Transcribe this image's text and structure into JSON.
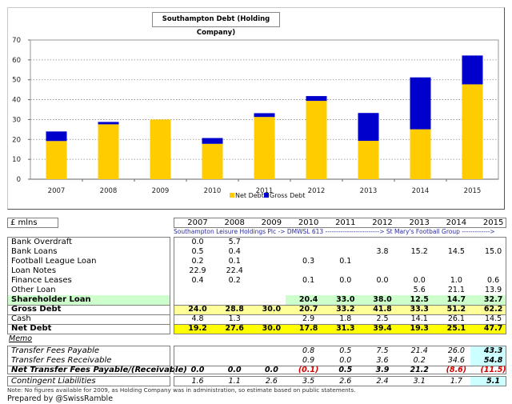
{
  "chart_data": {
    "type": "bar",
    "stacked": true,
    "title": "Southampton Debt (Holding Company)",
    "xlabel": "",
    "ylabel": "",
    "ylim": [
      0,
      70
    ],
    "yticks": [
      0,
      10,
      20,
      30,
      40,
      50,
      60,
      70
    ],
    "grid": true,
    "legend_position": "bottom",
    "categories": [
      "2007",
      "2008",
      "2009",
      "2010",
      "2011",
      "2012",
      "2013",
      "2014",
      "2015"
    ],
    "series": [
      {
        "name": "Net Debt",
        "color": "#FFCC00",
        "values": [
          19.2,
          27.6,
          30.0,
          17.8,
          31.3,
          39.4,
          19.3,
          25.1,
          47.7
        ]
      },
      {
        "name": "Gross Debt",
        "color": "#0000CC",
        "values": [
          4.8,
          1.2,
          0.0,
          2.9,
          1.9,
          2.4,
          14.0,
          26.1,
          14.5
        ],
        "note": "stacked difference to gross debt total",
        "totals": [
          24.0,
          28.8,
          30.0,
          20.7,
          33.2,
          41.8,
          33.3,
          51.2,
          62.2
        ]
      }
    ]
  },
  "table": {
    "unit_label": "£ mlns",
    "years": [
      "2007",
      "2008",
      "2009",
      "2010",
      "2011",
      "2012",
      "2013",
      "2014",
      "2015"
    ],
    "entities_line": "Southampton Leisure Holdings Plc -> DMWSL 613 -------------------------> St Mary's Football Group ------------->",
    "rows": [
      {
        "label": "Bank Overdraft",
        "values": [
          "0.0",
          "5.7",
          "",
          "",
          "",
          "",
          "",
          "",
          ""
        ]
      },
      {
        "label": "Bank Loans",
        "values": [
          "0.5",
          "0.4",
          "",
          "",
          "",
          "3.8",
          "15.2",
          "14.5",
          "15.0"
        ]
      },
      {
        "label": "Football League Loan",
        "values": [
          "0.2",
          "0.1",
          "",
          "0.3",
          "0.1",
          "",
          "",
          "",
          ""
        ]
      },
      {
        "label": "Loan Notes",
        "values": [
          "22.9",
          "22.4",
          "",
          "",
          "",
          "",
          "",
          "",
          ""
        ]
      },
      {
        "label": "Finance Leases",
        "values": [
          "0.4",
          "0.2",
          "",
          "0.1",
          "0.0",
          "0.0",
          "0.0",
          "1.0",
          "0.6"
        ]
      },
      {
        "label": "Other Loan",
        "values": [
          "",
          "",
          "",
          "",
          "",
          "",
          "5.6",
          "21.1",
          "13.9"
        ]
      },
      {
        "label": "Shareholder Loan",
        "values": [
          "",
          "",
          "",
          "20.4",
          "33.0",
          "38.0",
          "12.5",
          "14.7",
          "32.7"
        ]
      },
      {
        "label": "Gross Debt",
        "values": [
          "24.0",
          "28.8",
          "30.0",
          "20.7",
          "33.2",
          "41.8",
          "33.3",
          "51.2",
          "62.2"
        ]
      },
      {
        "label": "Cash",
        "values": [
          "4.8",
          "1.3",
          "",
          "2.9",
          "1.8",
          "2.5",
          "14.1",
          "26.1",
          "14.5"
        ]
      },
      {
        "label": "Net Debt",
        "values": [
          "19.2",
          "27.6",
          "30.0",
          "17.8",
          "31.3",
          "39.4",
          "19.3",
          "25.1",
          "47.7"
        ]
      }
    ],
    "memo_label": "Memo",
    "memo_rows": [
      {
        "label": "Transfer Fees Payable",
        "values": [
          "",
          "",
          "",
          "0.8",
          "0.5",
          "7.5",
          "21.4",
          "26.0",
          "43.3"
        ]
      },
      {
        "label": "Transfer Fees Receivable",
        "values": [
          "",
          "",
          "",
          "0.9",
          "0.0",
          "3.6",
          "0.2",
          "34.6",
          "54.8"
        ]
      },
      {
        "label": "Net Transfer Fees Payable/(Receivable)",
        "values": [
          "0.0",
          "0.0",
          "0.0",
          "(0.1)",
          "0.5",
          "3.9",
          "21.2",
          "(8.6)",
          "(11.5)"
        ]
      }
    ],
    "contingent": {
      "label": "Contingent Liabilities",
      "values": [
        "1.6",
        "1.1",
        "2.6",
        "3.5",
        "2.6",
        "2.4",
        "3.1",
        "1.7",
        "5.1"
      ]
    }
  },
  "colors": {
    "net_debt": "#FFCC00",
    "gross_debt": "#0000CC",
    "shareholder_band": "#CCFFCC",
    "gross_band": "#FFFF99",
    "net_band": "#FFFF00",
    "highlight_2015": "#CCFFFF",
    "negative": "#D40000"
  },
  "footer": {
    "note": "Note: No figures available for 2009, as Holding Company was in administration, so estimate based on public statements.",
    "prepared_by": "Prepared by @SwissRamble"
  }
}
